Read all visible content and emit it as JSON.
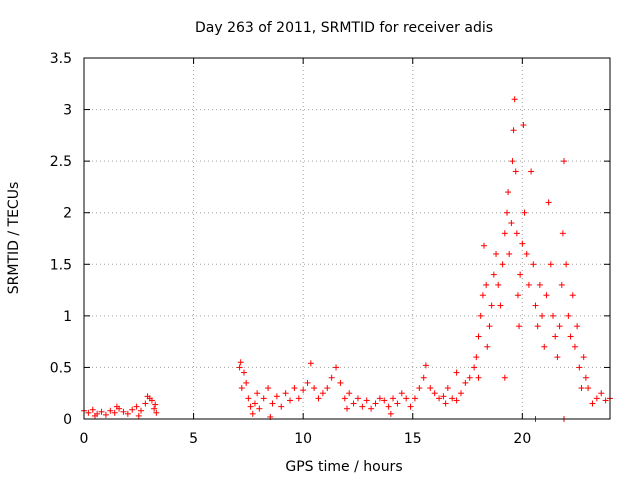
{
  "chart_data": {
    "type": "scatter",
    "title": "Day 263 of 2011, SRMTID for receiver adis",
    "xlabel": "GPS time / hours",
    "ylabel": "SRMTID / TECUs",
    "xlim": [
      0,
      24
    ],
    "ylim": [
      0,
      3.5
    ],
    "xticks": [
      0,
      5,
      10,
      15,
      20
    ],
    "xtick_labels": [
      "0",
      "5",
      "10",
      "15",
      "20"
    ],
    "yticks": [
      0,
      0.5,
      1,
      1.5,
      2,
      2.5,
      3,
      3.5
    ],
    "ytick_labels": [
      "0",
      "0.5",
      "1",
      "1.5",
      "2",
      "2.5",
      "3",
      "3.5"
    ],
    "grid": true,
    "marker": "+",
    "series": [
      {
        "name": "adis",
        "color": "#ff0000",
        "points": [
          [
            0.0,
            0.08
          ],
          [
            0.2,
            0.06
          ],
          [
            0.4,
            0.09
          ],
          [
            0.6,
            0.05
          ],
          [
            0.8,
            0.07
          ],
          [
            1.0,
            0.04
          ],
          [
            1.2,
            0.08
          ],
          [
            1.4,
            0.06
          ],
          [
            1.6,
            0.1
          ],
          [
            1.8,
            0.07
          ],
          [
            2.0,
            0.05
          ],
          [
            2.2,
            0.09
          ],
          [
            2.4,
            0.12
          ],
          [
            2.6,
            0.08
          ],
          [
            2.8,
            0.15
          ],
          [
            3.0,
            0.2
          ],
          [
            3.1,
            0.18
          ],
          [
            3.2,
            0.1
          ],
          [
            3.3,
            0.06
          ],
          [
            0.5,
            0.03
          ],
          [
            1.5,
            0.12
          ],
          [
            2.5,
            0.03
          ],
          [
            2.9,
            0.22
          ],
          [
            3.25,
            0.14
          ],
          [
            7.1,
            0.5
          ],
          [
            7.15,
            0.55
          ],
          [
            7.2,
            0.3
          ],
          [
            7.3,
            0.45
          ],
          [
            7.4,
            0.35
          ],
          [
            7.5,
            0.2
          ],
          [
            7.6,
            0.12
          ],
          [
            7.7,
            0.05
          ],
          [
            7.8,
            0.15
          ],
          [
            7.9,
            0.25
          ],
          [
            8.0,
            0.1
          ],
          [
            8.2,
            0.2
          ],
          [
            8.4,
            0.3
          ],
          [
            8.6,
            0.15
          ],
          [
            8.8,
            0.22
          ],
          [
            9.0,
            0.12
          ],
          [
            9.2,
            0.25
          ],
          [
            9.4,
            0.18
          ],
          [
            9.6,
            0.3
          ],
          [
            9.8,
            0.2
          ],
          [
            10.0,
            0.28
          ],
          [
            10.2,
            0.35
          ],
          [
            10.35,
            0.54
          ],
          [
            10.5,
            0.3
          ],
          [
            10.7,
            0.2
          ],
          [
            10.9,
            0.25
          ],
          [
            11.1,
            0.3
          ],
          [
            11.3,
            0.4
          ],
          [
            11.5,
            0.5
          ],
          [
            11.7,
            0.35
          ],
          [
            11.9,
            0.2
          ],
          [
            12.1,
            0.25
          ],
          [
            12.3,
            0.15
          ],
          [
            12.5,
            0.2
          ],
          [
            12.7,
            0.12
          ],
          [
            12.9,
            0.18
          ],
          [
            13.1,
            0.1
          ],
          [
            13.3,
            0.15
          ],
          [
            13.5,
            0.2
          ],
          [
            13.7,
            0.18
          ],
          [
            13.9,
            0.12
          ],
          [
            14.1,
            0.2
          ],
          [
            14.3,
            0.15
          ],
          [
            14.5,
            0.25
          ],
          [
            14.7,
            0.2
          ],
          [
            14.9,
            0.12
          ],
          [
            15.1,
            0.2
          ],
          [
            15.3,
            0.3
          ],
          [
            15.5,
            0.4
          ],
          [
            15.6,
            0.52
          ],
          [
            15.8,
            0.3
          ],
          [
            16.0,
            0.25
          ],
          [
            16.2,
            0.2
          ],
          [
            16.4,
            0.22
          ],
          [
            16.6,
            0.3
          ],
          [
            16.8,
            0.2
          ],
          [
            17.0,
            0.18
          ],
          [
            17.2,
            0.25
          ],
          [
            17.4,
            0.35
          ],
          [
            17.6,
            0.4
          ],
          [
            8.5,
            0.02
          ],
          [
            12.0,
            0.1
          ],
          [
            14.0,
            0.05
          ],
          [
            16.5,
            0.15
          ],
          [
            17.0,
            0.45
          ],
          [
            17.8,
            0.5
          ],
          [
            17.9,
            0.6
          ],
          [
            18.0,
            0.8
          ],
          [
            18.1,
            1.0
          ],
          [
            18.2,
            1.2
          ],
          [
            18.25,
            1.68
          ],
          [
            18.35,
            1.3
          ],
          [
            18.4,
            0.7
          ],
          [
            18.5,
            0.9
          ],
          [
            18.6,
            1.1
          ],
          [
            18.7,
            1.4
          ],
          [
            18.8,
            1.6
          ],
          [
            18.9,
            1.3
          ],
          [
            19.0,
            1.1
          ],
          [
            19.1,
            1.5
          ],
          [
            19.2,
            1.8
          ],
          [
            19.3,
            2.0
          ],
          [
            19.35,
            2.2
          ],
          [
            19.4,
            1.6
          ],
          [
            19.5,
            1.9
          ],
          [
            19.55,
            2.5
          ],
          [
            19.6,
            2.8
          ],
          [
            19.65,
            3.1
          ],
          [
            19.7,
            2.4
          ],
          [
            19.75,
            1.8
          ],
          [
            19.8,
            1.2
          ],
          [
            19.85,
            0.9
          ],
          [
            19.9,
            1.4
          ],
          [
            20.0,
            1.7
          ],
          [
            20.05,
            2.85
          ],
          [
            20.1,
            2.0
          ],
          [
            20.2,
            1.6
          ],
          [
            20.3,
            1.3
          ],
          [
            20.4,
            2.4
          ],
          [
            20.5,
            1.5
          ],
          [
            20.6,
            1.1
          ],
          [
            20.7,
            0.9
          ],
          [
            20.8,
            1.3
          ],
          [
            20.9,
            1.0
          ],
          [
            21.0,
            0.7
          ],
          [
            21.1,
            1.2
          ],
          [
            21.2,
            2.1
          ],
          [
            21.3,
            1.5
          ],
          [
            21.4,
            1.0
          ],
          [
            21.5,
            0.8
          ],
          [
            21.6,
            0.6
          ],
          [
            21.7,
            0.9
          ],
          [
            21.8,
            1.3
          ],
          [
            21.85,
            1.8
          ],
          [
            21.9,
            2.5
          ],
          [
            22.0,
            1.5
          ],
          [
            22.1,
            1.0
          ],
          [
            22.2,
            0.8
          ],
          [
            22.3,
            1.2
          ],
          [
            22.4,
            0.7
          ],
          [
            22.5,
            0.9
          ],
          [
            22.6,
            0.5
          ],
          [
            22.7,
            0.3
          ],
          [
            22.8,
            0.6
          ],
          [
            22.9,
            0.4
          ],
          [
            23.0,
            0.3
          ],
          [
            23.2,
            0.15
          ],
          [
            23.4,
            0.2
          ],
          [
            23.6,
            0.25
          ],
          [
            23.8,
            0.18
          ],
          [
            24.0,
            0.2
          ],
          [
            19.2,
            0.4
          ],
          [
            20.6,
            0.0
          ],
          [
            21.9,
            0.0
          ],
          [
            18.0,
            0.4
          ]
        ]
      }
    ]
  }
}
